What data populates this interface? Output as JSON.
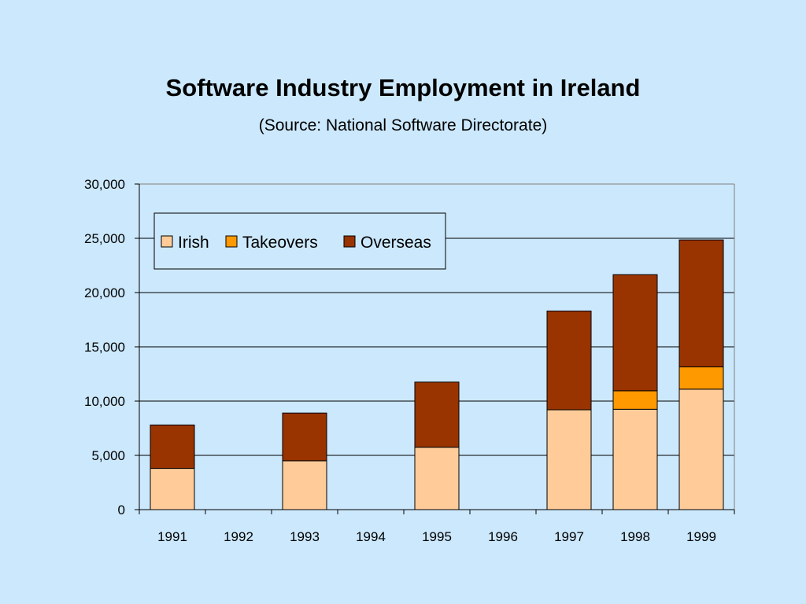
{
  "slide": {
    "title": "Software Industry Employment in Ireland",
    "subtitle": "(Source: National Software Directorate)"
  },
  "chart_data": {
    "type": "bar",
    "stacked": true,
    "categories": [
      "1991",
      "1992",
      "1993",
      "1994",
      "1995",
      "1996",
      "1997",
      "1998",
      "1999"
    ],
    "series": [
      {
        "name": "Irish",
        "color": "#ffcc99",
        "values": [
          3800,
          null,
          4500,
          null,
          5750,
          null,
          9200,
          9250,
          11100
        ]
      },
      {
        "name": "Takeovers",
        "color": "#ff9900",
        "values": [
          0,
          null,
          0,
          null,
          0,
          null,
          0,
          1700,
          2050
        ]
      },
      {
        "name": "Overseas",
        "color": "#993300",
        "values": [
          4000,
          null,
          4400,
          null,
          6000,
          null,
          9100,
          10700,
          11700
        ]
      }
    ],
    "ylim": [
      0,
      30000
    ],
    "yticks": [
      0,
      5000,
      10000,
      15000,
      20000,
      25000,
      30000
    ],
    "ytick_labels": [
      "0",
      "5,000",
      "10,000",
      "15,000",
      "20,000",
      "25,000",
      "30,000"
    ],
    "grid": true,
    "legend_position": "top-left",
    "xlabel": "",
    "ylabel": ""
  }
}
